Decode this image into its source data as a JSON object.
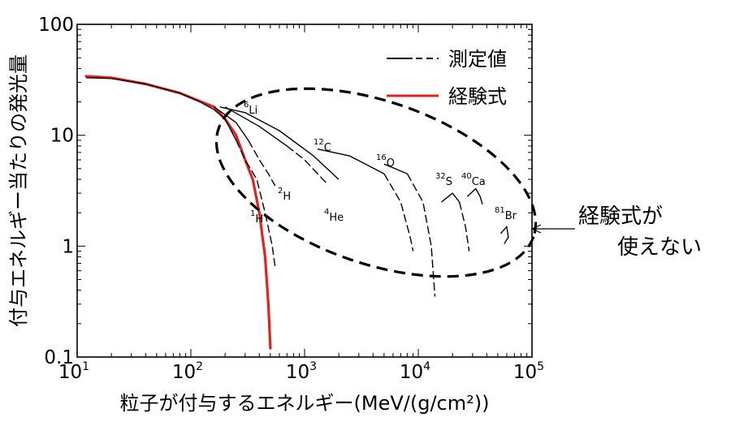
{
  "chart_data": {
    "type": "line",
    "title": "",
    "xlabel": "粒子が付与するエネルギー(MeV/(g/cm²))",
    "ylabel": "付与エネルギー当たりの発光量",
    "xscale": "log",
    "yscale": "log",
    "xlim": [
      10,
      100000
    ],
    "ylim": [
      0.1,
      100
    ],
    "x_ticks": [
      {
        "value": 10,
        "base": "10",
        "exp": "1"
      },
      {
        "value": 100,
        "base": "10",
        "exp": "2"
      },
      {
        "value": 1000,
        "base": "10",
        "exp": "3"
      },
      {
        "value": 10000,
        "base": "10",
        "exp": "4"
      },
      {
        "value": 100000,
        "base": "10",
        "exp": "5"
      }
    ],
    "y_ticks": [
      {
        "value": 0.1,
        "label": "0.1"
      },
      {
        "value": 1,
        "label": "1"
      },
      {
        "value": 10,
        "label": "10"
      },
      {
        "value": 100,
        "label": "100"
      }
    ],
    "legend": {
      "position": "top-right",
      "entries": [
        {
          "label": "測定値",
          "style": "solid-dashed",
          "color": "#000000"
        },
        {
          "label": "経験式",
          "style": "solid",
          "color": "#e8201c"
        }
      ]
    },
    "series": [
      {
        "name": "経験式",
        "color": "#e8201c",
        "style": "solid",
        "points": [
          [
            12,
            34
          ],
          [
            20,
            33
          ],
          [
            40,
            29
          ],
          [
            80,
            24
          ],
          [
            160,
            18
          ],
          [
            200,
            14
          ],
          [
            250,
            10
          ],
          [
            300,
            6
          ],
          [
            350,
            4
          ],
          [
            400,
            2
          ],
          [
            450,
            0.8
          ],
          [
            480,
            0.3
          ],
          [
            500,
            0.12
          ]
        ]
      },
      {
        "label": "1H",
        "num": "1",
        "el": "H",
        "color": "#000000",
        "solid": [
          [
            12,
            33
          ],
          [
            20,
            32.5
          ],
          [
            40,
            29
          ],
          [
            80,
            24
          ],
          [
            120,
            20
          ],
          [
            160,
            17
          ],
          [
            200,
            14
          ],
          [
            250,
            9
          ]
        ],
        "dashed": [
          [
            250,
            9
          ],
          [
            300,
            6
          ],
          [
            380,
            4
          ],
          [
            450,
            2
          ],
          [
            520,
            1
          ],
          [
            550,
            0.65
          ]
        ]
      },
      {
        "label": "2H",
        "num": "2",
        "el": "H",
        "color": "#000000",
        "solid": [
          [
            160,
            18
          ],
          [
            250,
            13
          ],
          [
            320,
            9
          ]
        ],
        "dashed": [
          [
            320,
            9
          ],
          [
            400,
            6
          ],
          [
            480,
            4.5
          ],
          [
            550,
            3.5
          ]
        ]
      },
      {
        "label": "4He",
        "num": "4",
        "el": "He",
        "color": "#000000",
        "solid": [
          [
            200,
            18
          ],
          [
            400,
            12
          ],
          [
            700,
            8
          ]
        ],
        "dashed": [
          [
            700,
            8
          ],
          [
            1000,
            6
          ],
          [
            1300,
            4.5
          ],
          [
            1600,
            3.6
          ]
        ]
      },
      {
        "label": "6Li",
        "num": "6",
        "el": "Li",
        "color": "#000000",
        "solid": [
          [
            180,
            18
          ],
          [
            300,
            16
          ],
          [
            600,
            11
          ],
          [
            1200,
            6.5
          ],
          [
            2000,
            4
          ]
        ],
        "dashed": []
      },
      {
        "label": "12C",
        "num": "12",
        "el": "C",
        "color": "#000000",
        "solid": [
          [
            1300,
            7.5
          ],
          [
            2500,
            6.5
          ],
          [
            5000,
            4.5
          ]
        ],
        "dashed": [
          [
            5000,
            4.5
          ],
          [
            7000,
            2.5
          ],
          [
            8500,
            1.2
          ],
          [
            9000,
            0.9
          ]
        ]
      },
      {
        "label": "16O",
        "num": "16",
        "el": "O",
        "color": "#000000",
        "solid": [
          [
            5000,
            5.5
          ],
          [
            8000,
            4.5
          ]
        ],
        "dashed": [
          [
            8000,
            4.5
          ],
          [
            11000,
            2.5
          ],
          [
            13000,
            1.0
          ],
          [
            14000,
            0.35
          ]
        ]
      },
      {
        "label": "32S",
        "num": "32",
        "el": "S",
        "color": "#000000",
        "solid": [
          [
            16000,
            2.5
          ],
          [
            20000,
            3
          ],
          [
            23000,
            2.5
          ]
        ],
        "dashed": [
          [
            23000,
            2.5
          ],
          [
            26000,
            1.5
          ],
          [
            28000,
            0.9
          ]
        ]
      },
      {
        "label": "40Ca",
        "num": "40",
        "el": "Ca",
        "color": "#000000",
        "solid": [
          [
            27000,
            2.8
          ],
          [
            32000,
            3.3
          ],
          [
            35000,
            2.8
          ]
        ],
        "dashed": [
          [
            35000,
            2.8
          ],
          [
            37000,
            2.3
          ]
        ]
      },
      {
        "label": "81Br",
        "num": "81",
        "el": "Br",
        "color": "#000000",
        "solid": [
          [
            53000,
            1.3
          ],
          [
            60000,
            1.5
          ],
          [
            62000,
            1.2
          ],
          [
            57000,
            1.05
          ]
        ],
        "dashed": []
      }
    ],
    "annotation": {
      "text_line1": "経験式が",
      "text_line2": "使えない",
      "region_style": "dashed-ellipse",
      "points_to": "heavy-ion curves (6Li–81Br)"
    }
  }
}
